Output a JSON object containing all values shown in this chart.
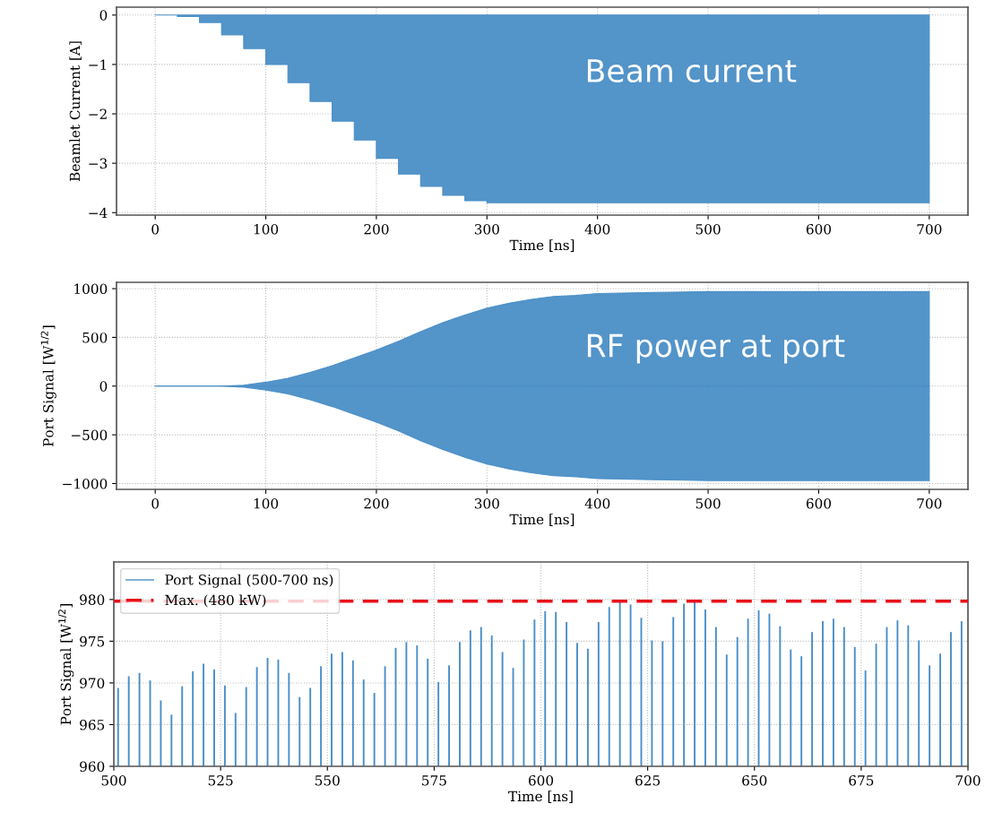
{
  "chart_data": [
    {
      "type": "area",
      "xlabel": "Time [ns]",
      "ylabel": "Beamlet Current [A]",
      "annotations": [
        "Beam current"
      ],
      "grid": true,
      "legend": false,
      "xlim": [
        -35,
        735
      ],
      "xticks": [
        0,
        100,
        200,
        300,
        400,
        500,
        600,
        700
      ],
      "ylim": [
        -4.05,
        0.16
      ],
      "yticks": [
        {
          "value": -4,
          "label": "−4"
        },
        {
          "value": -3,
          "label": "−3"
        },
        {
          "value": -2,
          "label": "−2"
        },
        {
          "value": -1,
          "label": "−1"
        },
        0
      ],
      "series": [
        {
          "color": "#4a8ec6",
          "x": [
            0,
            20,
            20,
            40,
            40,
            60,
            60,
            80,
            80,
            100,
            100,
            120,
            120,
            140,
            140,
            160,
            160,
            180,
            180,
            200,
            200,
            220,
            220,
            240,
            240,
            260,
            260,
            280,
            280,
            300,
            300,
            700
          ],
          "values": [
            0,
            0,
            -0.03,
            -0.03,
            -0.15,
            -0.15,
            -0.4,
            -0.4,
            -0.68,
            -0.68,
            -1.0,
            -1.0,
            -1.37,
            -1.37,
            -1.75,
            -1.75,
            -2.15,
            -2.15,
            -2.53,
            -2.53,
            -2.9,
            -2.9,
            -3.22,
            -3.22,
            -3.47,
            -3.47,
            -3.65,
            -3.65,
            -3.76,
            -3.76,
            -3.8,
            -3.8
          ]
        }
      ]
    },
    {
      "type": "area",
      "xlabel": "Time [ns]",
      "ylabel": "Port Signal [W$^{1/2}$]",
      "annotations": [
        "RF power at port"
      ],
      "grid": true,
      "legend": false,
      "xlim": [
        -35,
        735
      ],
      "xticks": [
        0,
        100,
        200,
        300,
        400,
        500,
        600,
        700
      ],
      "ylim": [
        -1060,
        1065
      ],
      "yticks": [
        {
          "value": -1000,
          "label": "−1000"
        },
        {
          "value": -500,
          "label": "−500"
        },
        0,
        500,
        1000
      ],
      "series": [
        {
          "color": "#4a8ec6",
          "x": [
            0,
            60,
            80,
            100,
            120,
            140,
            160,
            180,
            200,
            220,
            240,
            260,
            280,
            300,
            320,
            340,
            360,
            380,
            400,
            450,
            500,
            600,
            700
          ],
          "values": [
            0,
            0,
            10,
            40,
            80,
            140,
            210,
            290,
            370,
            460,
            560,
            650,
            730,
            800,
            850,
            890,
            920,
            930,
            950,
            960,
            970,
            970,
            970
          ]
        },
        {
          "color": "#4a8ec6",
          "x": [
            0,
            60,
            80,
            100,
            120,
            140,
            160,
            180,
            200,
            220,
            240,
            260,
            280,
            300,
            320,
            340,
            360,
            380,
            400,
            450,
            500,
            600,
            700
          ],
          "values": [
            0,
            0,
            -10,
            -40,
            -80,
            -140,
            -210,
            -290,
            -370,
            -460,
            -560,
            -650,
            -730,
            -800,
            -850,
            -890,
            -920,
            -930,
            -950,
            -960,
            -970,
            -970,
            -970
          ]
        }
      ]
    },
    {
      "type": "bar",
      "xlabel": "Time [ns]",
      "ylabel": "Port Signal [W$^{1/2}$]",
      "grid": true,
      "legend": "top left",
      "xlim": [
        500,
        700
      ],
      "xticks": [
        500,
        525,
        550,
        575,
        600,
        625,
        650,
        675,
        700
      ],
      "ylim": [
        960,
        984.5
      ],
      "yticks": [
        960,
        965,
        970,
        975,
        980
      ],
      "ref_lines": [
        {
          "axis": "y",
          "value": 979.8,
          "label": "Max. (480 kW)",
          "color": "#e8111a",
          "line_style": "dashed"
        }
      ],
      "series": [
        {
          "name": "Port Signal (500-700 ns)",
          "color": "#4a8ec6",
          "x": [
            501,
            503.5,
            506,
            508.5,
            511,
            513.5,
            516,
            518.5,
            521,
            523.5,
            526,
            528.5,
            531,
            533.5,
            536,
            538.5,
            541,
            543.5,
            546,
            548.5,
            551,
            553.5,
            556,
            558.5,
            561,
            563.5,
            566,
            568.5,
            571,
            573.5,
            576,
            578.5,
            581,
            583.5,
            586,
            588.5,
            591,
            593.5,
            596,
            598.5,
            601,
            603.5,
            606,
            608.5,
            611,
            613.5,
            616,
            618.5,
            621,
            623.5,
            626,
            628.5,
            631,
            633.5,
            636,
            638.5,
            641,
            643.5,
            646,
            648.5,
            651,
            653.5,
            656,
            658.5,
            661,
            663.5,
            666,
            668.5,
            671,
            673.5,
            676,
            678.5,
            681,
            683.5,
            686,
            688.5,
            691,
            693.5,
            696,
            698.5
          ],
          "values": [
            969.4,
            970.8,
            971.2,
            970.3,
            967.9,
            966.2,
            969.6,
            971.4,
            972.3,
            971.6,
            969.7,
            966.4,
            969.5,
            971.9,
            973.0,
            972.8,
            971.2,
            968.3,
            969.4,
            972.0,
            973.5,
            973.7,
            972.7,
            970.4,
            968.8,
            972.0,
            974.2,
            974.9,
            974.5,
            972.9,
            970.1,
            972.1,
            974.9,
            976.3,
            976.7,
            975.7,
            973.7,
            971.8,
            975.2,
            977.6,
            978.6,
            978.5,
            977.3,
            974.8,
            974.1,
            977.3,
            979.1,
            979.7,
            979.4,
            977.8,
            975.1,
            975.0,
            977.9,
            979.5,
            979.7,
            978.8,
            976.7,
            973.4,
            975.5,
            977.7,
            978.7,
            978.3,
            976.8,
            974.0,
            973.2,
            976.1,
            977.4,
            977.7,
            976.7,
            974.3,
            971.5,
            974.7,
            976.7,
            977.5,
            976.9,
            975.1,
            972.1,
            973.5,
            976.1,
            977.4
          ]
        }
      ]
    }
  ]
}
